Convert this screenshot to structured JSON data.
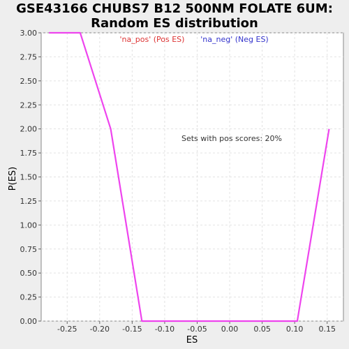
{
  "chart_data": {
    "type": "line",
    "title_line1": "GSE43166 CHUBS7 B12 500NM FOLATE 6UM:",
    "title_line2": "Random ES distribution",
    "xlabel": "ES",
    "ylabel": "P(ES)",
    "xlim": [
      -0.29,
      0.175
    ],
    "ylim": [
      0,
      3.0
    ],
    "xticks": [
      -0.25,
      -0.2,
      -0.15,
      -0.1,
      -0.05,
      0.0,
      0.05,
      0.1,
      0.15
    ],
    "xtick_labels": [
      "-0.25",
      "-0.20",
      "-0.15",
      "-0.10",
      "-0.05",
      "0.00",
      "0.05",
      "0.10",
      "0.15"
    ],
    "yticks": [
      0.0,
      0.25,
      0.5,
      0.75,
      1.0,
      1.25,
      1.5,
      1.75,
      2.0,
      2.25,
      2.5,
      2.75,
      3.0
    ],
    "ytick_labels": [
      "0.00",
      "0.25",
      "0.50",
      "0.75",
      "1.00",
      "1.25",
      "1.50",
      "1.75",
      "2.00",
      "2.25",
      "2.50",
      "2.75",
      "3.00"
    ],
    "grid": true,
    "legend": [
      {
        "label": "'na_pos' (Pos ES)",
        "color": "#dd3333"
      },
      {
        "label": "'na_neg' (Neg ES)",
        "color": "#3333cc"
      }
    ],
    "annotation": "Sets with pos scores: 20%",
    "series": [
      {
        "color": "#ee44ee",
        "x": [
          -0.278,
          -0.23,
          -0.183,
          -0.135,
          0.104,
          0.153
        ],
        "y": [
          3.0,
          3.0,
          2.0,
          0.0,
          0.0,
          2.0
        ]
      }
    ]
  }
}
